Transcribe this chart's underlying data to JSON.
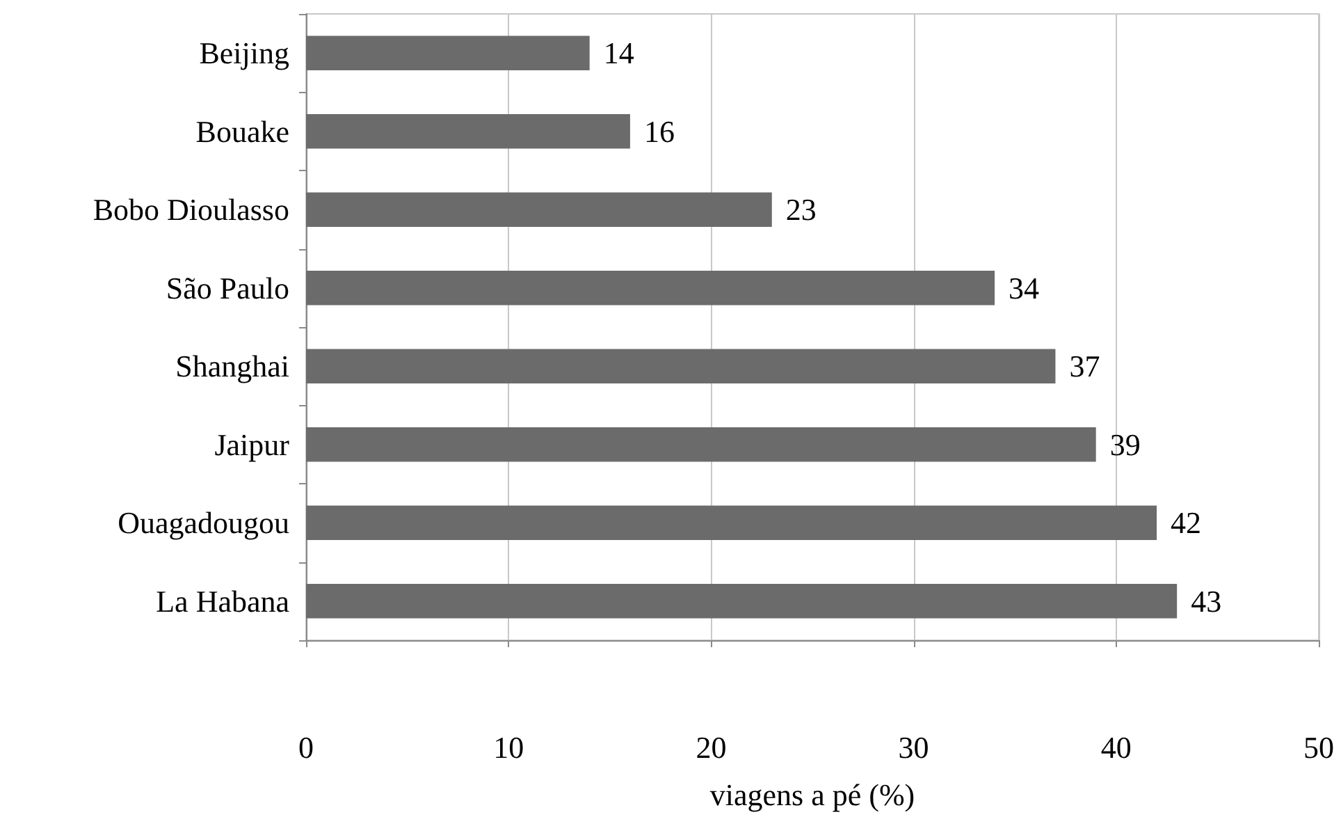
{
  "chart_data": {
    "type": "bar",
    "orientation": "horizontal",
    "xlabel": "viagens a pé (%)",
    "categories": [
      "Beijing",
      "Bouake",
      "Bobo Dioulasso",
      "São Paulo",
      "Shanghai",
      "Jaipur",
      "Ouagadougou",
      "La Habana"
    ],
    "values": [
      14,
      16,
      23,
      34,
      37,
      39,
      42,
      43
    ],
    "color": "#6b6b6b",
    "xlim": [
      0,
      50
    ],
    "xticks": [
      0,
      10,
      20,
      30,
      40,
      50
    ],
    "grid": "x",
    "data_labels": true
  }
}
